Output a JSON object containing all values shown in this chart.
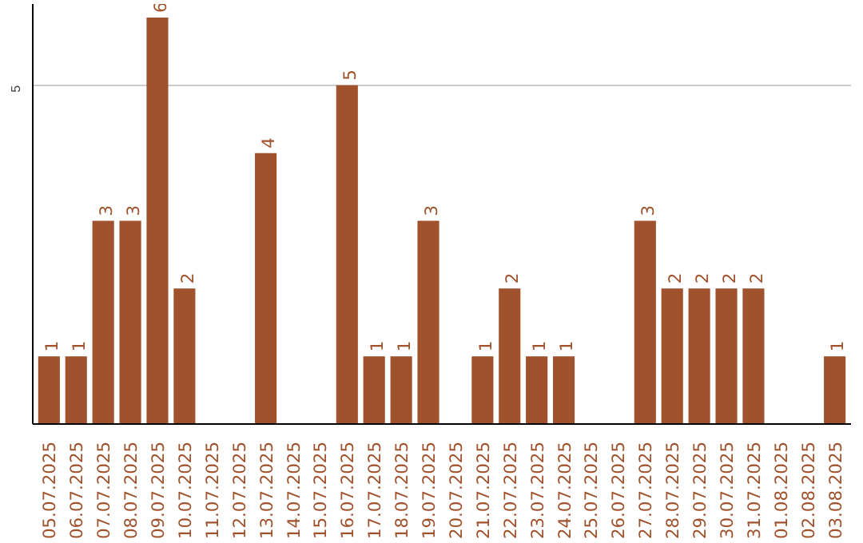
{
  "chart_data": {
    "type": "bar",
    "categories": [
      "05.07.2025",
      "06.07.2025",
      "07.07.2025",
      "08.07.2025",
      "09.07.2025",
      "10.07.2025",
      "11.07.2025",
      "12.07.2025",
      "13.07.2025",
      "14.07.2025",
      "15.07.2025",
      "16.07.2025",
      "17.07.2025",
      "18.07.2025",
      "19.07.2025",
      "20.07.2025",
      "21.07.2025",
      "22.07.2025",
      "23.07.2025",
      "24.07.2025",
      "25.07.2025",
      "26.07.2025",
      "27.07.2025",
      "28.07.2025",
      "29.07.2025",
      "30.07.2025",
      "31.07.2025",
      "01.08.2025",
      "02.08.2025",
      "03.08.2025"
    ],
    "values": [
      1,
      1,
      3,
      3,
      6,
      2,
      0,
      0,
      4,
      0,
      0,
      5,
      1,
      1,
      3,
      0,
      1,
      2,
      1,
      1,
      0,
      0,
      3,
      2,
      2,
      2,
      2,
      0,
      0,
      1
    ],
    "value_labels": [
      "1",
      "1",
      "3",
      "3",
      "6",
      "2",
      null,
      null,
      "4",
      null,
      null,
      "5",
      "1",
      "1",
      "3",
      null,
      "1",
      "2",
      "1",
      "1",
      null,
      null,
      "3",
      "2",
      "2",
      "2",
      "2",
      null,
      null,
      "1"
    ],
    "color": "#a0522d",
    "ylim": [
      0,
      6.2
    ],
    "yticks": [
      5
    ],
    "grid": "y"
  }
}
